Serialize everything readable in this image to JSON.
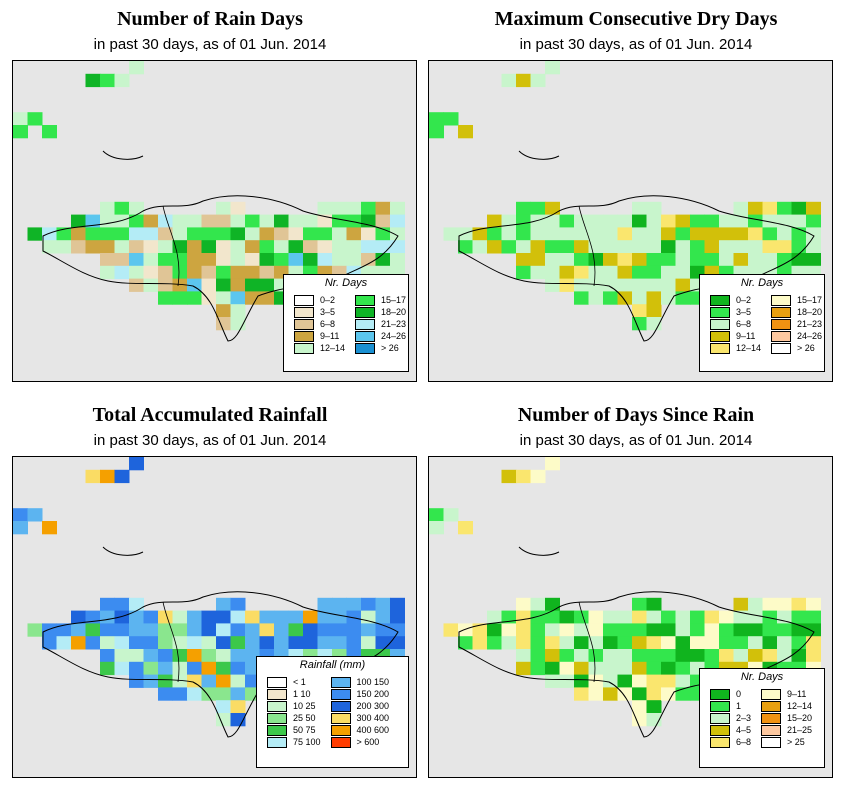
{
  "panels": [
    {
      "id": "rain-days",
      "title": "Number of Rain Days",
      "subtitle": "in past 30 days, as of  01 Jun. 2014",
      "legend": {
        "title": "Nr. Days",
        "items": [
          {
            "label": "0–2",
            "color": "#ffffff"
          },
          {
            "label": "3–5",
            "color": "#f2e6cc"
          },
          {
            "label": "6–8",
            "color": "#e0c596"
          },
          {
            "label": "9–11",
            "color": "#cda540"
          },
          {
            "label": "12–14",
            "color": "#c8f5cc"
          },
          {
            "label": "15–17",
            "color": "#33e64d"
          },
          {
            "label": "18–20",
            "color": "#0fb426"
          },
          {
            "label": "21–23",
            "color": "#b4ecf6"
          },
          {
            "label": "24–26",
            "color": "#5cc6ee"
          },
          {
            "label": "> 26",
            "color": "#1a90d2"
          }
        ]
      }
    },
    {
      "id": "max-dry-days",
      "title": "Maximum Consecutive Dry Days",
      "subtitle": "in past 30 days, as of  01 Jun. 2014",
      "legend": {
        "title": "Nr. Days",
        "items": [
          {
            "label": "0–2",
            "color": "#10b41e"
          },
          {
            "label": "3–5",
            "color": "#33e64d"
          },
          {
            "label": "6–8",
            "color": "#c8f5cc"
          },
          {
            "label": "9–11",
            "color": "#d2c00a"
          },
          {
            "label": "12–14",
            "color": "#fae66e"
          },
          {
            "label": "15–17",
            "color": "#fdfbc8"
          },
          {
            "label": "18–20",
            "color": "#e8a010"
          },
          {
            "label": "21–23",
            "color": "#f09212"
          },
          {
            "label": "24–26",
            "color": "#fdc8a0"
          },
          {
            "label": "> 26",
            "color": "#ffffff"
          }
        ]
      }
    },
    {
      "id": "total-rainfall",
      "title": "Total Accumulated Rainfall",
      "subtitle": "in past 30 days, as of  01 Jun. 2014",
      "legend": {
        "title": "Rainfall (mm)",
        "items": [
          {
            "label": "< 1",
            "color": "#ffffff"
          },
          {
            "label": "1    10",
            "color": "#f2e6cc"
          },
          {
            "label": "10    25",
            "color": "#c8f5cc"
          },
          {
            "label": "25    50",
            "color": "#8ae68e"
          },
          {
            "label": "50    75",
            "color": "#3cc84a"
          },
          {
            "label": "75   100",
            "color": "#b4ecf6"
          },
          {
            "label": "100   150",
            "color": "#5cb4f0"
          },
          {
            "label": "150   200",
            "color": "#3c8cf0"
          },
          {
            "label": "200   300",
            "color": "#1e64dc"
          },
          {
            "label": "300   400",
            "color": "#fadc64"
          },
          {
            "label": "400   600",
            "color": "#f5a000"
          },
          {
            "label": "> 600",
            "color": "#ff3c00"
          }
        ]
      }
    },
    {
      "id": "days-since-rain",
      "title": "Number of Days Since Rain",
      "subtitle": "in past 30 days, as of  01 Jun. 2014",
      "legend": {
        "title": "Nr. Days",
        "items": [
          {
            "label": "0",
            "color": "#10b41e"
          },
          {
            "label": "1",
            "color": "#33e64d"
          },
          {
            "label": "2–3",
            "color": "#c8f5cc"
          },
          {
            "label": "4–5",
            "color": "#d2c00a"
          },
          {
            "label": "6–8",
            "color": "#fae66e"
          },
          {
            "label": "9–11",
            "color": "#fdfbc8"
          },
          {
            "label": "12–14",
            "color": "#e8a010"
          },
          {
            "label": "15–20",
            "color": "#f09212"
          },
          {
            "label": "21–25",
            "color": "#fdc8a0"
          },
          {
            "label": "> 25",
            "color": "#ffffff"
          }
        ]
      }
    }
  ]
}
